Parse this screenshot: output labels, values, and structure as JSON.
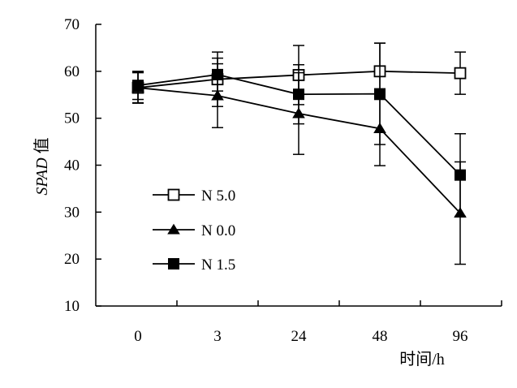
{
  "chart_data": {
    "type": "line",
    "title": "",
    "xlabel": "时间/h",
    "ylabel_italic": "SPAD",
    "ylabel_suffix": " 值",
    "categories": [
      "0",
      "3",
      "24",
      "48",
      "96"
    ],
    "ylim": [
      10,
      70
    ],
    "yticks": [
      10,
      20,
      30,
      40,
      50,
      60,
      70
    ],
    "grid": false,
    "legend_position": "bottom-left",
    "series": [
      {
        "name": "N 5.0",
        "marker": "open-square",
        "values": [
          56.5,
          58.3,
          59.2,
          60.0,
          59.6
        ],
        "errors": [
          3.3,
          5.8,
          6.3,
          6.0,
          4.5
        ]
      },
      {
        "name": "N 0.0",
        "marker": "filled-triangle",
        "values": [
          56.5,
          54.8,
          51.0,
          47.8,
          29.8
        ],
        "errors": [
          3.2,
          6.8,
          8.7,
          7.9,
          10.9
        ]
      },
      {
        "name": "N 1.5",
        "marker": "filled-square",
        "values": [
          57.0,
          59.3,
          55.1,
          55.2,
          37.9
        ],
        "errors": [
          3.0,
          3.5,
          6.3,
          10.8,
          8.8
        ]
      }
    ]
  }
}
